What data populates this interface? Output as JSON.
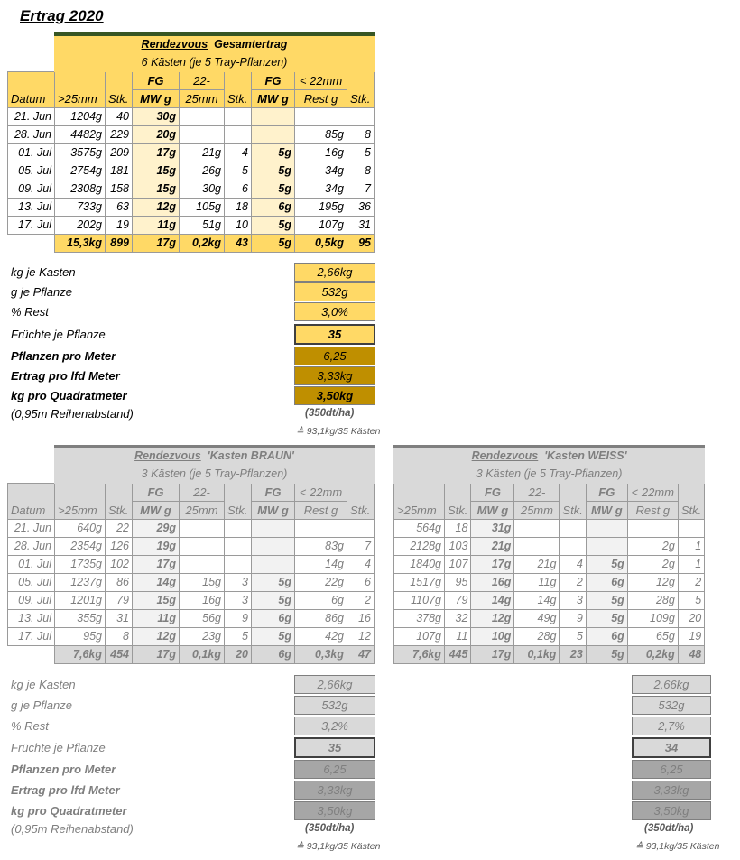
{
  "title": "Ertrag 2020",
  "columns": {
    "datum": "Datum",
    "gt25": ">25mm",
    "stk": "Stk.",
    "fg_top": "FG",
    "fg_bot": "MW g",
    "mid_top": "22-",
    "mid_bot": "25mm",
    "lt22_top": "< 22mm",
    "lt22_bot": "Rest g"
  },
  "summary_labels": {
    "kg_kasten": "kg je Kasten",
    "g_pflanze": "g je Pflanze",
    "rest": "% Rest",
    "fruechte": "Früchte je Pflanze",
    "pflanzen_meter": "Pflanzen pro Meter",
    "ertrag_meter": "Ertrag pro lfd Meter",
    "kg_qm": "kg pro Quadratmeter",
    "reihenabstand": "(0,95m Reihenabstand)"
  },
  "main": {
    "name": "Rendezvous",
    "title_rest": "Gesamtertrag",
    "subtitle": "6 Kästen (je 5 Tray-Pflanzen)",
    "rows": [
      [
        "21. Jun",
        "1204g",
        "40",
        "30g",
        "",
        "",
        "",
        "",
        ""
      ],
      [
        "28. Jun",
        "4482g",
        "229",
        "20g",
        "",
        "",
        "",
        "85g",
        "8"
      ],
      [
        "01. Jul",
        "3575g",
        "209",
        "17g",
        "21g",
        "4",
        "5g",
        "16g",
        "5"
      ],
      [
        "05. Jul",
        "2754g",
        "181",
        "15g",
        "26g",
        "5",
        "5g",
        "34g",
        "8"
      ],
      [
        "09. Jul",
        "2308g",
        "158",
        "15g",
        "30g",
        "6",
        "5g",
        "34g",
        "7"
      ],
      [
        "13. Jul",
        "733g",
        "63",
        "12g",
        "105g",
        "18",
        "6g",
        "195g",
        "36"
      ],
      [
        "17. Jul",
        "202g",
        "19",
        "11g",
        "51g",
        "10",
        "5g",
        "107g",
        "31"
      ]
    ],
    "total": [
      "",
      "15,3kg",
      "899",
      "17g",
      "0,2kg",
      "43",
      "5g",
      "0,5kg",
      "95"
    ],
    "summary": {
      "kg_kasten": "2,66kg",
      "g_pflanze": "532g",
      "rest": "3,0%",
      "fruechte": "35",
      "pflanzen_meter": "6,25",
      "ertrag_meter": "3,33kg",
      "kg_qm": "3,50kg"
    },
    "dtha": "(350dt/ha)",
    "note": "≙ 93,1kg/35 Kästen"
  },
  "braun": {
    "name": "Rendezvous",
    "title_rest": "'Kasten BRAUN'",
    "subtitle": "3 Kästen (je 5 Tray-Pflanzen)",
    "rows": [
      [
        "21. Jun",
        "640g",
        "22",
        "29g",
        "",
        "",
        "",
        "",
        ""
      ],
      [
        "28. Jun",
        "2354g",
        "126",
        "19g",
        "",
        "",
        "",
        "83g",
        "7"
      ],
      [
        "01. Jul",
        "1735g",
        "102",
        "17g",
        "",
        "",
        "",
        "14g",
        "4"
      ],
      [
        "05. Jul",
        "1237g",
        "86",
        "14g",
        "15g",
        "3",
        "5g",
        "22g",
        "6"
      ],
      [
        "09. Jul",
        "1201g",
        "79",
        "15g",
        "16g",
        "3",
        "5g",
        "6g",
        "2"
      ],
      [
        "13. Jul",
        "355g",
        "31",
        "11g",
        "56g",
        "9",
        "6g",
        "86g",
        "16"
      ],
      [
        "17. Jul",
        "95g",
        "8",
        "12g",
        "23g",
        "5",
        "5g",
        "42g",
        "12"
      ]
    ],
    "total": [
      "",
      "7,6kg",
      "454",
      "17g",
      "0,1kg",
      "20",
      "6g",
      "0,3kg",
      "47"
    ],
    "summary": {
      "kg_kasten": "2,66kg",
      "g_pflanze": "532g",
      "rest": "3,2%",
      "fruechte": "35",
      "pflanzen_meter": "6,25",
      "ertrag_meter": "3,33kg",
      "kg_qm": "3,50kg"
    },
    "dtha": "(350dt/ha)",
    "note": "≙ 93,1kg/35 Kästen"
  },
  "weiss": {
    "name": "Rendezvous",
    "title_rest": "'Kasten WEISS'",
    "subtitle": "3 Kästen (je 5 Tray-Pflanzen)",
    "rows": [
      [
        "564g",
        "18",
        "31g",
        "",
        "",
        "",
        "",
        ""
      ],
      [
        "2128g",
        "103",
        "21g",
        "",
        "",
        "",
        "2g",
        "1"
      ],
      [
        "1840g",
        "107",
        "17g",
        "21g",
        "4",
        "5g",
        "2g",
        "1"
      ],
      [
        "1517g",
        "95",
        "16g",
        "11g",
        "2",
        "6g",
        "12g",
        "2"
      ],
      [
        "1107g",
        "79",
        "14g",
        "14g",
        "3",
        "5g",
        "28g",
        "5"
      ],
      [
        "378g",
        "32",
        "12g",
        "49g",
        "9",
        "5g",
        "109g",
        "20"
      ],
      [
        "107g",
        "11",
        "10g",
        "28g",
        "5",
        "6g",
        "65g",
        "19"
      ]
    ],
    "total": [
      "7,6kg",
      "445",
      "17g",
      "0,1kg",
      "23",
      "5g",
      "0,2kg",
      "48"
    ],
    "summary": {
      "kg_kasten": "2,66kg",
      "g_pflanze": "532g",
      "rest": "2,7%",
      "fruechte": "34",
      "pflanzen_meter": "6,25",
      "ertrag_meter": "3,33kg",
      "kg_qm": "3,50kg"
    },
    "dtha": "(350dt/ha)",
    "note": "≙ 93,1kg/35 Kästen"
  }
}
